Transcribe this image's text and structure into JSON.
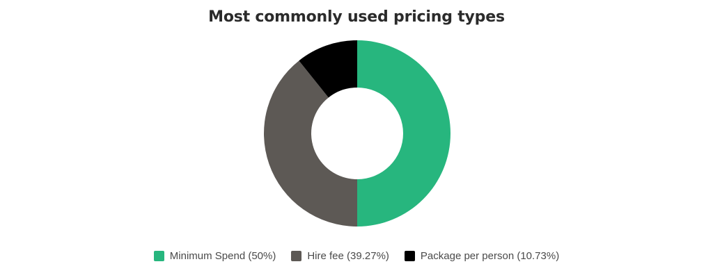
{
  "chart_data": {
    "type": "pie",
    "title": "Most commonly used pricing types",
    "donut": true,
    "start_angle_deg": 0,
    "direction": "clockwise",
    "legend_position": "bottom",
    "slices": [
      {
        "label": "Minimum Spend (50%)",
        "value": 50,
        "color": "#27b67e"
      },
      {
        "label": "Hire fee (39.27%)",
        "value": 39.27,
        "color": "#5d5955"
      },
      {
        "label": "Package per person (10.73%)",
        "value": 10.73,
        "color": "#000000"
      }
    ]
  }
}
